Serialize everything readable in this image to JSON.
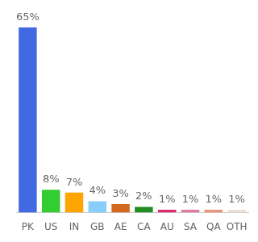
{
  "chart_data": {
    "type": "bar",
    "categories": [
      "PK",
      "US",
      "IN",
      "GB",
      "AE",
      "CA",
      "AU",
      "SA",
      "QA",
      "OTH"
    ],
    "values": [
      65,
      8,
      7,
      4,
      3,
      2,
      1,
      1,
      1,
      1
    ],
    "value_labels": [
      "65%",
      "8%",
      "7%",
      "4%",
      "3%",
      "2%",
      "1%",
      "1%",
      "1%",
      "1%"
    ],
    "colors": [
      "#4169e1",
      "#32cd32",
      "#ffa500",
      "#87cefa",
      "#d2691e",
      "#228b22",
      "#dc2a6e",
      "#e07ba0",
      "#e9967a",
      "#efe0d4"
    ],
    "ylim": [
      0,
      65
    ],
    "grid": false,
    "data_labels": true,
    "tick_labels": "x"
  }
}
